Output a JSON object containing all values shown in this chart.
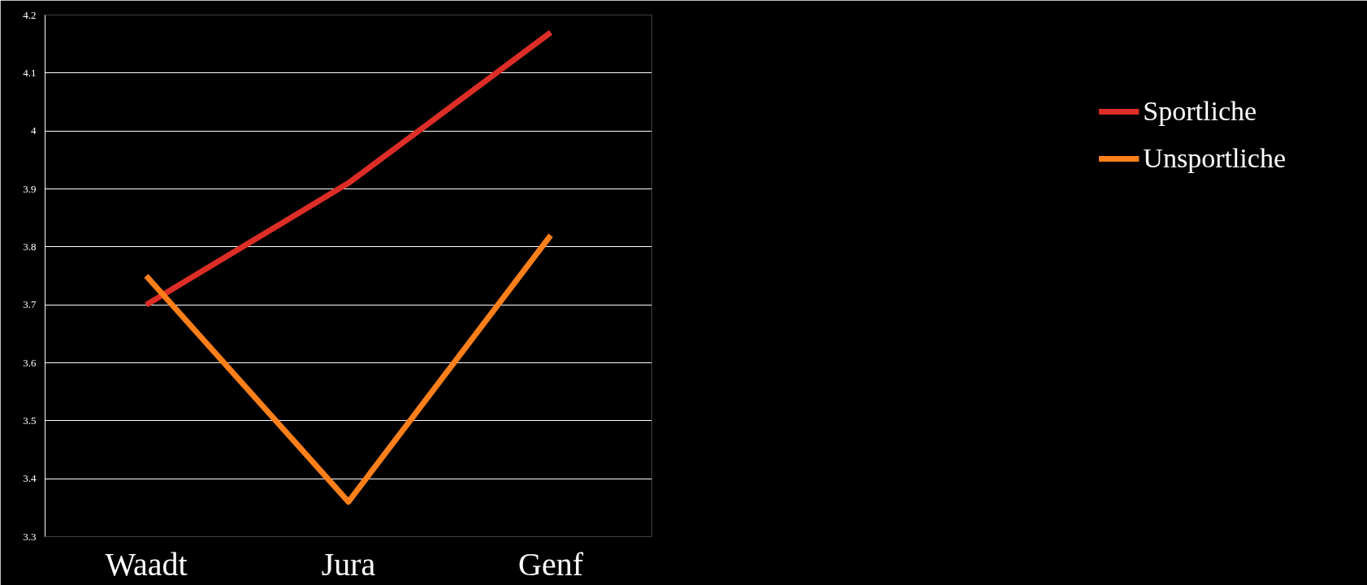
{
  "chart_data": {
    "type": "line",
    "categories": [
      "Waadt",
      "Jura",
      "Genf"
    ],
    "series": [
      {
        "name": "Sportliche",
        "color": "#dc2e26",
        "values": [
          3.7,
          3.91,
          4.17
        ]
      },
      {
        "name": "Unsportliche",
        "color": "#ff7f1a",
        "values": [
          3.75,
          3.36,
          3.82
        ]
      }
    ],
    "ylim": [
      3.3,
      4.2
    ],
    "yticks": [
      3.3,
      3.4,
      3.5,
      3.6,
      3.7,
      3.8,
      3.9,
      4,
      4.1,
      4.2
    ],
    "grid": "y",
    "legend": "right",
    "marker": "none",
    "line_style": "solid"
  }
}
